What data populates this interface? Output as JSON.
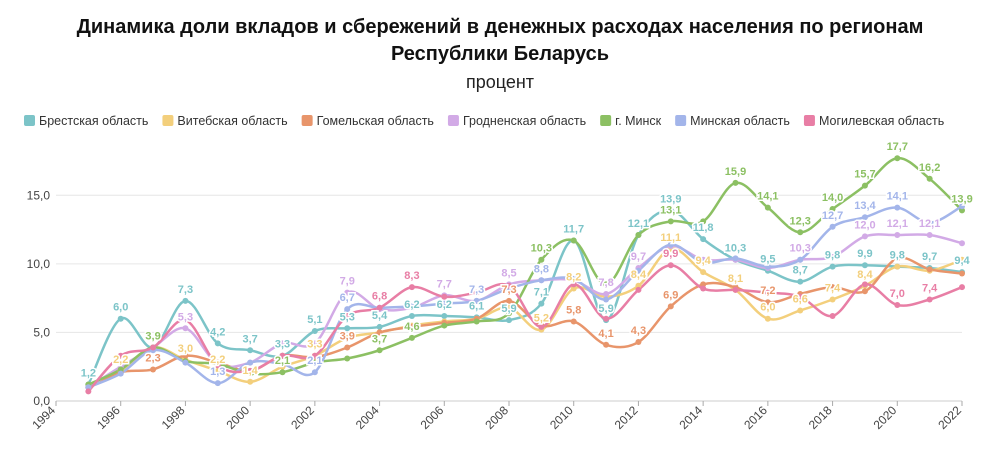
{
  "chart_data": {
    "type": "line",
    "title_lines": [
      "Динамика доли вкладов и сбережений в денежных расходах населения по регионам",
      "Республики Беларусь"
    ],
    "subtitle": "процент",
    "x": [
      1995,
      1996,
      1997,
      1998,
      1999,
      2000,
      2001,
      2002,
      2003,
      2004,
      2005,
      2006,
      2007,
      2008,
      2009,
      2010,
      2011,
      2012,
      2013,
      2014,
      2015,
      2016,
      2017,
      2018,
      2019,
      2020,
      2021,
      2022
    ],
    "xlim": [
      1994,
      2022
    ],
    "xticks": [
      1994,
      1996,
      1998,
      2000,
      2002,
      2004,
      2006,
      2008,
      2010,
      2012,
      2014,
      2016,
      2018,
      2020,
      2022
    ],
    "ylim": [
      0,
      18.3
    ],
    "yticks": [
      {
        "value": 0,
        "label": "0,0"
      },
      {
        "value": 5,
        "label": "5,0"
      },
      {
        "value": 10,
        "label": "10,0"
      },
      {
        "value": 15,
        "label": "15,0"
      }
    ],
    "grid": true,
    "legend": "top",
    "series": [
      {
        "name": "Брестская область",
        "color": "#7cc4c8",
        "values": [
          1.2,
          6.0,
          3.9,
          7.3,
          4.2,
          3.7,
          3.3,
          5.1,
          5.3,
          5.4,
          6.2,
          6.2,
          6.1,
          5.9,
          7.1,
          11.7,
          5.9,
          12.1,
          13.9,
          11.8,
          10.3,
          9.5,
          8.7,
          9.8,
          9.9,
          9.8,
          9.7,
          9.4
        ],
        "value_labels": [
          "1,2",
          "6,0",
          null,
          "7,3",
          "4,2",
          "3,7",
          "3,3",
          "5,1",
          "5,3",
          "5,4",
          "6,2",
          "6,2",
          "6,1",
          "5,9",
          "7,1",
          "11,7",
          "5,9",
          "12,1",
          "13,9",
          "11,8",
          "10,3",
          "9,5",
          "8,7",
          "9,8",
          "9,9",
          "9,8",
          "9,7",
          "9,4"
        ]
      },
      {
        "name": "Витебская область",
        "color": "#f3cf7c",
        "values": [
          1.0,
          2.2,
          3.9,
          3.0,
          2.2,
          1.4,
          2.5,
          3.3,
          4.6,
          5.0,
          5.5,
          5.8,
          6.0,
          6.8,
          5.2,
          8.2,
          7.6,
          8.4,
          11.1,
          9.4,
          8.1,
          6.0,
          6.6,
          7.4,
          8.4,
          9.8,
          9.5,
          10.3
        ],
        "value_labels": [
          null,
          "2,2",
          null,
          "3,0",
          "2,2",
          "1,4",
          null,
          "3,3",
          null,
          null,
          null,
          null,
          null,
          null,
          "5,2",
          "8,2",
          null,
          "8,4",
          "11,1",
          "9,4",
          "8,1",
          "6,0",
          "6,6",
          "7,4",
          "8,4",
          null,
          null,
          null
        ]
      },
      {
        "name": "Гомельская область",
        "color": "#e8956b",
        "values": [
          1.0,
          2.1,
          2.3,
          3.3,
          2.8,
          2.2,
          3.3,
          3.2,
          3.9,
          5.0,
          5.4,
          5.7,
          6.0,
          7.3,
          5.5,
          5.8,
          4.1,
          4.3,
          6.9,
          8.5,
          8.3,
          7.2,
          7.8,
          8.3,
          8.0,
          10.4,
          9.6,
          9.3
        ],
        "value_labels": [
          null,
          null,
          "2,3",
          null,
          null,
          null,
          null,
          null,
          "3,9",
          null,
          null,
          null,
          null,
          "7,3",
          null,
          "5,8",
          "4,1",
          "4,3",
          "6,9",
          null,
          null,
          "7,2",
          null,
          null,
          null,
          null,
          null,
          null
        ]
      },
      {
        "name": "Гродненская область",
        "color": "#d2aae6",
        "values": [
          1.0,
          2.5,
          3.9,
          5.3,
          2.7,
          2.8,
          4.2,
          4.2,
          7.9,
          6.7,
          6.8,
          7.7,
          7.3,
          8.5,
          8.8,
          8.8,
          7.8,
          9.7,
          11.3,
          10.3,
          10.3,
          9.7,
          10.3,
          10.5,
          12.0,
          12.1,
          12.1,
          11.5
        ],
        "value_labels": [
          null,
          null,
          null,
          "5,3",
          null,
          null,
          null,
          null,
          "7,9",
          null,
          null,
          "7,7",
          null,
          "8,5",
          null,
          null,
          "7,8",
          "9,7",
          null,
          null,
          null,
          null,
          "10,3",
          null,
          "12,0",
          "12,1",
          "12,1",
          null
        ]
      },
      {
        "name": "г. Минск",
        "color": "#8cc063",
        "values": [
          1.2,
          2.3,
          3.9,
          2.9,
          2.7,
          2.0,
          2.1,
          2.8,
          3.1,
          3.7,
          4.6,
          5.5,
          5.8,
          6.4,
          10.3,
          11.7,
          8.5,
          12.1,
          13.1,
          13.1,
          15.9,
          14.1,
          12.3,
          14.0,
          15.7,
          17.7,
          16.2,
          13.9
        ],
        "value_labels": [
          null,
          null,
          "3,9",
          null,
          null,
          null,
          "2,1",
          null,
          null,
          "3,7",
          "4,6",
          null,
          null,
          null,
          "10,3",
          null,
          null,
          null,
          "13,1",
          null,
          "15,9",
          "14,1",
          "12,3",
          "14,0",
          "15,7",
          "17,7",
          "16,2",
          "13,9"
        ]
      },
      {
        "name": "Минская область",
        "color": "#a3b5ea",
        "values": [
          1.0,
          2.0,
          3.7,
          2.8,
          1.3,
          2.8,
          2.7,
          2.1,
          6.7,
          6.8,
          6.9,
          7.1,
          7.3,
          8.2,
          8.8,
          8.9,
          7.4,
          9.5,
          11.4,
          10.1,
          10.4,
          9.8,
          10.3,
          12.7,
          13.4,
          14.1,
          13.0,
          14.2
        ],
        "value_labels": [
          null,
          null,
          null,
          null,
          "1,3",
          null,
          null,
          "2,1",
          "6,7",
          null,
          null,
          null,
          "7,3",
          null,
          "8,8",
          null,
          null,
          null,
          null,
          null,
          null,
          null,
          null,
          "12,7",
          "13,4",
          "14,1",
          null,
          null
        ]
      },
      {
        "name": "Могилевская область",
        "color": "#e87ea5",
        "values": [
          0.7,
          3.3,
          3.9,
          5.9,
          2.6,
          2.2,
          3.3,
          3.3,
          6.2,
          6.8,
          8.3,
          7.6,
          7.9,
          8.4,
          5.4,
          8.5,
          6.0,
          8.1,
          9.9,
          8.2,
          8.1,
          7.9,
          7.6,
          6.2,
          8.5,
          7.0,
          7.4,
          8.3
        ],
        "value_labels": [
          null,
          null,
          null,
          null,
          null,
          null,
          null,
          null,
          null,
          "6,8",
          "8,3",
          null,
          null,
          null,
          null,
          null,
          null,
          null,
          "9,9",
          null,
          null,
          null,
          null,
          null,
          null,
          "7,0",
          "7,4",
          null
        ]
      }
    ]
  }
}
